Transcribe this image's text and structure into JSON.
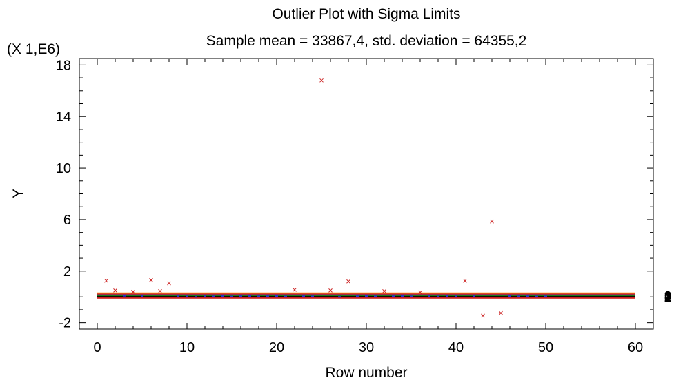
{
  "chart_data": {
    "type": "scatter",
    "title": "Outlier Plot with Sigma Limits",
    "subtitle": "Sample mean = 33867,4, std. deviation = 64355,2",
    "xlabel": "Row number",
    "ylabel": "Y",
    "y_scale_label": "(X 1,E6)",
    "xlim": [
      -2,
      62
    ],
    "ylim": [
      -2.5,
      18.5
    ],
    "x_ticks": [
      0,
      10,
      20,
      30,
      40,
      50,
      60
    ],
    "y_ticks": [
      -2,
      2,
      6,
      10,
      14,
      18
    ],
    "y_tick_labels": [
      "-2",
      "2",
      "6",
      "10",
      "14",
      "18"
    ],
    "grid": false,
    "sigma_lines": [
      {
        "value": 0.02,
        "color": "#000000"
      },
      {
        "value": 0.1,
        "color": "#1a7a1a"
      },
      {
        "value": 0.16,
        "color": "#2233cc"
      },
      {
        "value": -0.06,
        "color": "#cc2222"
      },
      {
        "value": -0.15,
        "color": "#cc2222"
      },
      {
        "value": 0.23,
        "color": "#cc2222"
      },
      {
        "value": 0.3,
        "color": "#ff8800"
      }
    ],
    "right_labels": [
      "3",
      "2",
      "1",
      "0",
      "1",
      "2",
      "3"
    ],
    "outliers": {
      "color": "#cc2222",
      "x": [
        1,
        2,
        4,
        6,
        7,
        8,
        22,
        25,
        26,
        28,
        32,
        36,
        41,
        43,
        44,
        45
      ],
      "y": [
        1.25,
        0.5,
        0.4,
        1.3,
        0.45,
        1.05,
        0.55,
        16.8,
        0.5,
        1.2,
        0.45,
        0.35,
        1.25,
        -1.45,
        5.85,
        -1.25
      ]
    },
    "inliers": {
      "color": "#2233cc",
      "x": [
        3,
        5,
        9,
        10,
        11,
        12,
        13,
        14,
        15,
        16,
        17,
        18,
        19,
        20,
        21,
        23,
        24,
        27,
        29,
        30,
        31,
        33,
        34,
        35,
        37,
        38,
        39,
        40,
        42,
        46,
        47,
        48,
        49,
        50
      ],
      "y": [
        0.08,
        0.06,
        0.05,
        0.04,
        0.0,
        0.05,
        0.04,
        0.06,
        0.03,
        0.05,
        0.06,
        0.04,
        0.05,
        0.06,
        0.03,
        0.05,
        0.04,
        0.0,
        0.05,
        0.06,
        0.04,
        0.05,
        0.06,
        0.04,
        0.05,
        0.03,
        0.06,
        0.04,
        0.05,
        0.06,
        0.04,
        0.05,
        0.03,
        0.04
      ]
    }
  }
}
